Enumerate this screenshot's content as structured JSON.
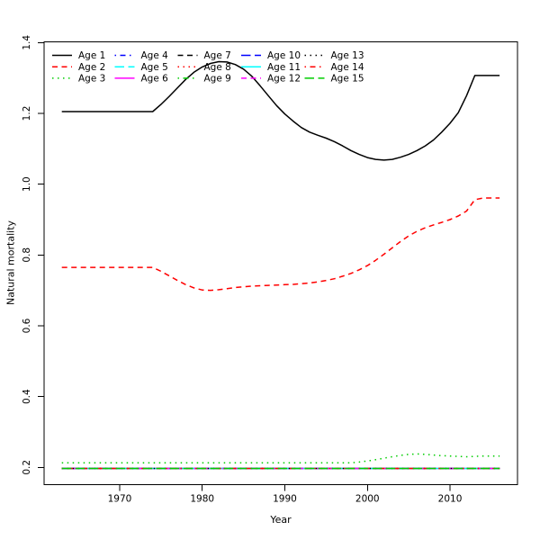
{
  "chart_data": {
    "type": "line",
    "title": "",
    "xlabel": "Year",
    "ylabel": "Natural mortality",
    "x_ticks": [
      1970,
      1980,
      1990,
      2000,
      2010
    ],
    "y_ticks": [
      "0.2",
      "0.4",
      "0.6",
      "0.8",
      "1.0",
      "1.2",
      "1.4"
    ],
    "xlim": [
      1960.84,
      2018.17
    ],
    "ylim": [
      0.151,
      1.402
    ],
    "grid": false,
    "legend_position": "top-left-inside",
    "legend_columns": 5,
    "x": [
      1963,
      1964,
      1965,
      1966,
      1967,
      1968,
      1969,
      1970,
      1971,
      1972,
      1973,
      1974,
      1975,
      1976,
      1977,
      1978,
      1979,
      1980,
      1981,
      1982,
      1983,
      1984,
      1985,
      1986,
      1987,
      1988,
      1989,
      1990,
      1991,
      1992,
      1993,
      1994,
      1995,
      1996,
      1997,
      1998,
      1999,
      2000,
      2001,
      2002,
      2003,
      2004,
      2005,
      2006,
      2007,
      2008,
      2009,
      2010,
      2011,
      2012,
      2013,
      2014,
      2015,
      2016
    ],
    "series": [
      {
        "name": "Age 1",
        "color": "#000000",
        "lty": 1,
        "values": [
          1.205,
          1.205,
          1.205,
          1.205,
          1.205,
          1.205,
          1.205,
          1.205,
          1.205,
          1.205,
          1.205,
          1.205,
          1.225,
          1.248,
          1.272,
          1.296,
          1.316,
          1.331,
          1.341,
          1.346,
          1.345,
          1.338,
          1.325,
          1.305,
          1.278,
          1.25,
          1.222,
          1.198,
          1.178,
          1.16,
          1.147,
          1.138,
          1.13,
          1.12,
          1.108,
          1.095,
          1.084,
          1.075,
          1.07,
          1.068,
          1.07,
          1.076,
          1.084,
          1.095,
          1.108,
          1.125,
          1.147,
          1.172,
          1.202,
          1.25,
          1.307,
          1.307,
          1.307,
          1.307
        ]
      },
      {
        "name": "Age 2",
        "color": "#FF0000",
        "lty": 2,
        "values": [
          0.765,
          0.765,
          0.765,
          0.765,
          0.765,
          0.765,
          0.765,
          0.765,
          0.765,
          0.765,
          0.765,
          0.765,
          0.754,
          0.741,
          0.728,
          0.716,
          0.707,
          0.701,
          0.7,
          0.702,
          0.705,
          0.708,
          0.71,
          0.712,
          0.713,
          0.714,
          0.715,
          0.716,
          0.717,
          0.719,
          0.721,
          0.724,
          0.728,
          0.733,
          0.74,
          0.748,
          0.758,
          0.77,
          0.785,
          0.802,
          0.82,
          0.838,
          0.854,
          0.867,
          0.877,
          0.885,
          0.892,
          0.9,
          0.91,
          0.924,
          0.956,
          0.961,
          0.961,
          0.961
        ]
      },
      {
        "name": "Age 3",
        "color": "#00CD00",
        "lty": 3,
        "values": [
          0.213,
          0.213,
          0.213,
          0.213,
          0.213,
          0.213,
          0.213,
          0.213,
          0.213,
          0.213,
          0.213,
          0.213,
          0.213,
          0.213,
          0.213,
          0.213,
          0.213,
          0.213,
          0.213,
          0.213,
          0.213,
          0.213,
          0.213,
          0.213,
          0.213,
          0.213,
          0.213,
          0.213,
          0.213,
          0.213,
          0.213,
          0.213,
          0.213,
          0.213,
          0.213,
          0.213,
          0.215,
          0.218,
          0.222,
          0.226,
          0.23,
          0.234,
          0.237,
          0.238,
          0.237,
          0.235,
          0.233,
          0.232,
          0.231,
          0.23,
          0.231,
          0.232,
          0.232,
          0.232
        ]
      },
      {
        "name": "Age 4",
        "color": "#0000FF",
        "lty": 4,
        "constant": 0.197
      },
      {
        "name": "Age 5",
        "color": "#00FFFF",
        "lty": 5,
        "constant": 0.197
      },
      {
        "name": "Age 6",
        "color": "#FF00FF",
        "lty": 1,
        "constant": 0.197
      },
      {
        "name": "Age 7",
        "color": "#000000",
        "lty": 2,
        "constant": 0.197
      },
      {
        "name": "Age 8",
        "color": "#FF0000",
        "lty": 3,
        "constant": 0.197
      },
      {
        "name": "Age 9",
        "color": "#00CD00",
        "lty": 4,
        "constant": 0.197
      },
      {
        "name": "Age 10",
        "color": "#0000FF",
        "lty": 5,
        "constant": 0.197
      },
      {
        "name": "Age 11",
        "color": "#00FFFF",
        "lty": 1,
        "constant": 0.197
      },
      {
        "name": "Age 12",
        "color": "#FF00FF",
        "lty": 2,
        "constant": 0.197
      },
      {
        "name": "Age 13",
        "color": "#000000",
        "lty": 3,
        "constant": 0.197
      },
      {
        "name": "Age 14",
        "color": "#FF0000",
        "lty": 4,
        "constant": 0.197
      },
      {
        "name": "Age 15",
        "color": "#00CD00",
        "lty": 5,
        "constant": 0.197
      }
    ]
  }
}
